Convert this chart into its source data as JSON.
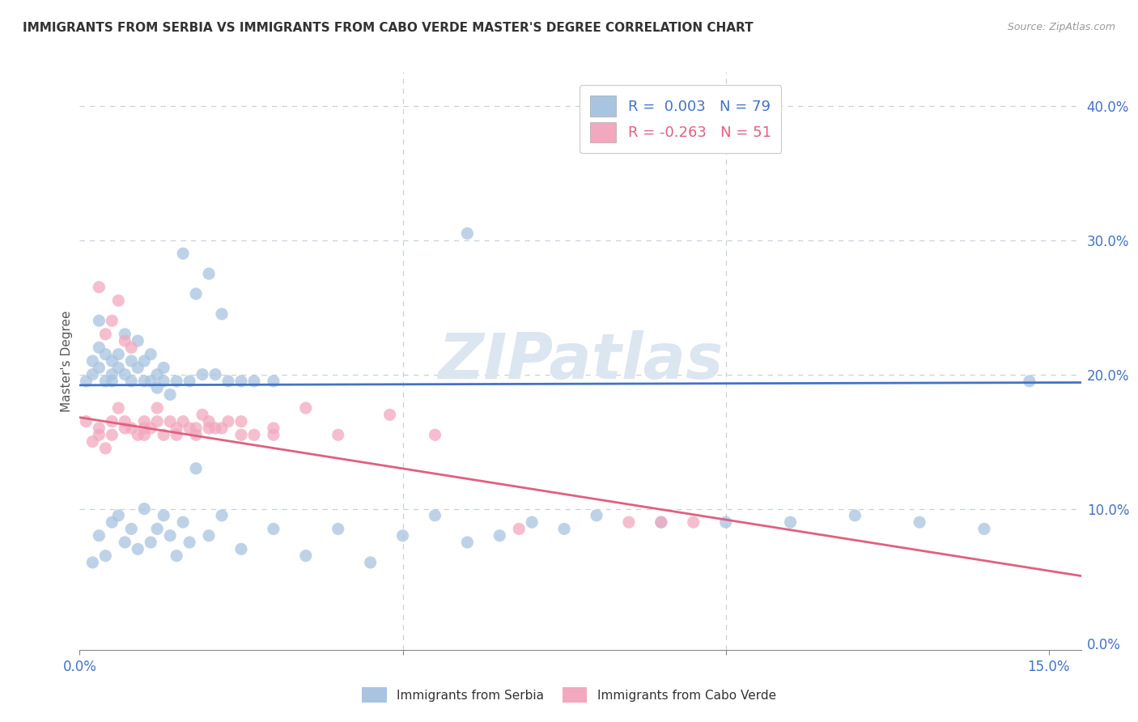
{
  "title": "IMMIGRANTS FROM SERBIA VS IMMIGRANTS FROM CABO VERDE MASTER'S DEGREE CORRELATION CHART",
  "source_text": "Source: ZipAtlas.com",
  "ylabel": "Master's Degree",
  "xlim": [
    0.0,
    0.155
  ],
  "ylim": [
    -0.005,
    0.425
  ],
  "xticks": [
    0.0,
    0.05,
    0.1,
    0.15
  ],
  "xticklabels": [
    "0.0%",
    "",
    "",
    "15.0%"
  ],
  "yticks": [
    0.0,
    0.1,
    0.2,
    0.3,
    0.4
  ],
  "yticklabels_right": [
    "0.0%",
    "10.0%",
    "20.0%",
    "30.0%",
    "40.0%"
  ],
  "serbia_color": "#a8c4e0",
  "cabo_verde_color": "#f2a8be",
  "serbia_line_color": "#4472c4",
  "cabo_verde_line_color": "#e06080",
  "serbia_r": 0.003,
  "serbia_n": 79,
  "cabo_verde_r": -0.263,
  "cabo_verde_n": 51,
  "watermark": "ZIPatlas",
  "serbia_x": [
    0.001,
    0.002,
    0.002,
    0.003,
    0.003,
    0.003,
    0.004,
    0.004,
    0.005,
    0.005,
    0.005,
    0.006,
    0.006,
    0.007,
    0.007,
    0.008,
    0.008,
    0.009,
    0.009,
    0.01,
    0.01,
    0.011,
    0.011,
    0.012,
    0.012,
    0.013,
    0.013,
    0.014,
    0.015,
    0.016,
    0.017,
    0.018,
    0.019,
    0.02,
    0.021,
    0.022,
    0.023,
    0.025,
    0.027,
    0.03,
    0.002,
    0.003,
    0.004,
    0.005,
    0.006,
    0.007,
    0.008,
    0.009,
    0.01,
    0.011,
    0.012,
    0.013,
    0.014,
    0.015,
    0.016,
    0.017,
    0.018,
    0.02,
    0.022,
    0.025,
    0.03,
    0.035,
    0.04,
    0.045,
    0.05,
    0.055,
    0.06,
    0.065,
    0.07,
    0.075,
    0.08,
    0.09,
    0.1,
    0.11,
    0.12,
    0.13,
    0.14,
    0.147,
    0.06
  ],
  "serbia_y": [
    0.195,
    0.2,
    0.21,
    0.24,
    0.22,
    0.205,
    0.215,
    0.195,
    0.21,
    0.2,
    0.195,
    0.205,
    0.215,
    0.23,
    0.2,
    0.21,
    0.195,
    0.225,
    0.205,
    0.21,
    0.195,
    0.215,
    0.195,
    0.2,
    0.19,
    0.205,
    0.195,
    0.185,
    0.195,
    0.29,
    0.195,
    0.26,
    0.2,
    0.275,
    0.2,
    0.245,
    0.195,
    0.195,
    0.195,
    0.195,
    0.06,
    0.08,
    0.065,
    0.09,
    0.095,
    0.075,
    0.085,
    0.07,
    0.1,
    0.075,
    0.085,
    0.095,
    0.08,
    0.065,
    0.09,
    0.075,
    0.13,
    0.08,
    0.095,
    0.07,
    0.085,
    0.065,
    0.085,
    0.06,
    0.08,
    0.095,
    0.075,
    0.08,
    0.09,
    0.085,
    0.095,
    0.09,
    0.09,
    0.09,
    0.095,
    0.09,
    0.085,
    0.195,
    0.305
  ],
  "cabo_x": [
    0.001,
    0.002,
    0.003,
    0.003,
    0.004,
    0.005,
    0.005,
    0.006,
    0.007,
    0.007,
    0.008,
    0.009,
    0.01,
    0.01,
    0.011,
    0.012,
    0.013,
    0.014,
    0.015,
    0.016,
    0.017,
    0.018,
    0.019,
    0.02,
    0.021,
    0.022,
    0.023,
    0.025,
    0.027,
    0.03,
    0.003,
    0.004,
    0.005,
    0.006,
    0.007,
    0.008,
    0.01,
    0.012,
    0.015,
    0.018,
    0.02,
    0.025,
    0.03,
    0.035,
    0.04,
    0.048,
    0.055,
    0.068,
    0.085,
    0.09,
    0.095
  ],
  "cabo_y": [
    0.165,
    0.15,
    0.16,
    0.155,
    0.145,
    0.165,
    0.155,
    0.175,
    0.16,
    0.165,
    0.16,
    0.155,
    0.165,
    0.16,
    0.16,
    0.175,
    0.155,
    0.165,
    0.16,
    0.165,
    0.16,
    0.155,
    0.17,
    0.16,
    0.16,
    0.16,
    0.165,
    0.155,
    0.155,
    0.155,
    0.265,
    0.23,
    0.24,
    0.255,
    0.225,
    0.22,
    0.155,
    0.165,
    0.155,
    0.16,
    0.165,
    0.165,
    0.16,
    0.175,
    0.155,
    0.17,
    0.155,
    0.085,
    0.09,
    0.09,
    0.09
  ],
  "serbia_trend_x": [
    0.0,
    0.155
  ],
  "serbia_trend_y": [
    0.192,
    0.194
  ],
  "cabo_trend_x": [
    0.0,
    0.155
  ],
  "cabo_trend_y": [
    0.168,
    0.05
  ]
}
